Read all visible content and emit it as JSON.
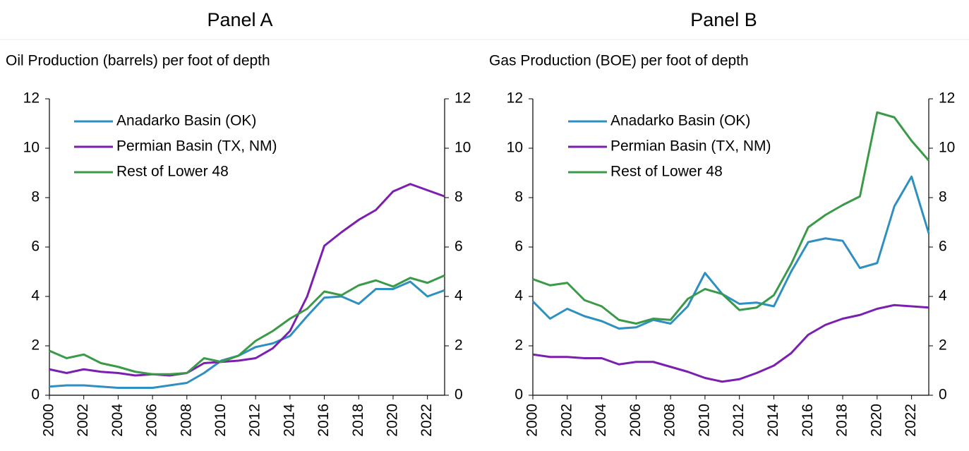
{
  "chart_data": [
    {
      "type": "line",
      "title": "Panel A",
      "subtitle": "Oil Production (barrels) per foot of depth",
      "x": [
        2000,
        2001,
        2002,
        2003,
        2004,
        2005,
        2006,
        2007,
        2008,
        2009,
        2010,
        2011,
        2012,
        2013,
        2014,
        2015,
        2016,
        2017,
        2018,
        2019,
        2020,
        2021,
        2022,
        2023
      ],
      "xlim": [
        2000,
        2023
      ],
      "xticks": [
        2000,
        2002,
        2004,
        2006,
        2008,
        2010,
        2012,
        2014,
        2016,
        2018,
        2020,
        2022
      ],
      "ylim": [
        0,
        12
      ],
      "yticks": [
        0,
        2,
        4,
        6,
        8,
        10,
        12
      ],
      "y2lim": [
        0,
        12
      ],
      "y2ticks": [
        0,
        2,
        4,
        6,
        8,
        10,
        12
      ],
      "legend": "upper left",
      "series": [
        {
          "name": "Anadarko Basin (OK)",
          "color": "#2e8fc1",
          "values": [
            0.35,
            0.4,
            0.4,
            0.35,
            0.3,
            0.3,
            0.3,
            0.4,
            0.5,
            0.9,
            1.4,
            1.6,
            1.95,
            2.1,
            2.4,
            3.2,
            3.95,
            4.0,
            3.7,
            4.3,
            4.3,
            4.6,
            4.0,
            4.25
          ]
        },
        {
          "name": "Permian Basin (TX, NM)",
          "color": "#7b1fb0",
          "values": [
            1.05,
            0.9,
            1.05,
            0.95,
            0.9,
            0.8,
            0.85,
            0.8,
            0.9,
            1.3,
            1.35,
            1.4,
            1.5,
            1.9,
            2.6,
            4.0,
            6.05,
            6.6,
            7.1,
            7.5,
            8.25,
            8.55,
            8.3,
            8.05
          ]
        },
        {
          "name": "Rest of Lower 48",
          "color": "#3a9a47",
          "values": [
            1.8,
            1.5,
            1.65,
            1.3,
            1.15,
            0.95,
            0.85,
            0.85,
            0.9,
            1.5,
            1.35,
            1.6,
            2.2,
            2.6,
            3.1,
            3.5,
            4.2,
            4.05,
            4.45,
            4.65,
            4.4,
            4.75,
            4.55,
            4.85
          ]
        }
      ]
    },
    {
      "type": "line",
      "title": "Panel B",
      "subtitle": "Gas Production (BOE) per foot of depth",
      "x": [
        2000,
        2001,
        2002,
        2003,
        2004,
        2005,
        2006,
        2007,
        2008,
        2009,
        2010,
        2011,
        2012,
        2013,
        2014,
        2015,
        2016,
        2017,
        2018,
        2019,
        2020,
        2021,
        2022,
        2023
      ],
      "xlim": [
        2000,
        2023
      ],
      "xticks": [
        2000,
        2002,
        2004,
        2006,
        2008,
        2010,
        2012,
        2014,
        2016,
        2018,
        2020,
        2022
      ],
      "ylim": [
        0,
        12
      ],
      "yticks": [
        0,
        2,
        4,
        6,
        8,
        10,
        12
      ],
      "y2lim": [
        0,
        12
      ],
      "y2ticks": [
        0,
        2,
        4,
        6,
        8,
        10,
        12
      ],
      "legend": "upper left",
      "series": [
        {
          "name": "Anadarko Basin (OK)",
          "color": "#2e8fc1",
          "values": [
            3.8,
            3.1,
            3.5,
            3.2,
            3.0,
            2.7,
            2.75,
            3.05,
            2.9,
            3.6,
            4.95,
            4.1,
            3.7,
            3.75,
            3.6,
            5.0,
            6.2,
            6.35,
            6.25,
            5.15,
            5.35,
            7.65,
            8.85,
            6.55
          ]
        },
        {
          "name": "Permian Basin (TX, NM)",
          "color": "#7b1fb0",
          "values": [
            1.65,
            1.55,
            1.55,
            1.5,
            1.5,
            1.25,
            1.35,
            1.35,
            1.15,
            0.95,
            0.7,
            0.55,
            0.65,
            0.9,
            1.2,
            1.7,
            2.45,
            2.85,
            3.1,
            3.25,
            3.5,
            3.65,
            3.6,
            3.55
          ]
        },
        {
          "name": "Rest of Lower 48",
          "color": "#3a9a47",
          "values": [
            4.7,
            4.45,
            4.55,
            3.85,
            3.6,
            3.05,
            2.9,
            3.1,
            3.05,
            3.9,
            4.3,
            4.1,
            3.45,
            3.55,
            4.05,
            5.3,
            6.8,
            7.3,
            7.7,
            8.05,
            11.45,
            11.25,
            10.3,
            9.5
          ]
        }
      ]
    }
  ]
}
